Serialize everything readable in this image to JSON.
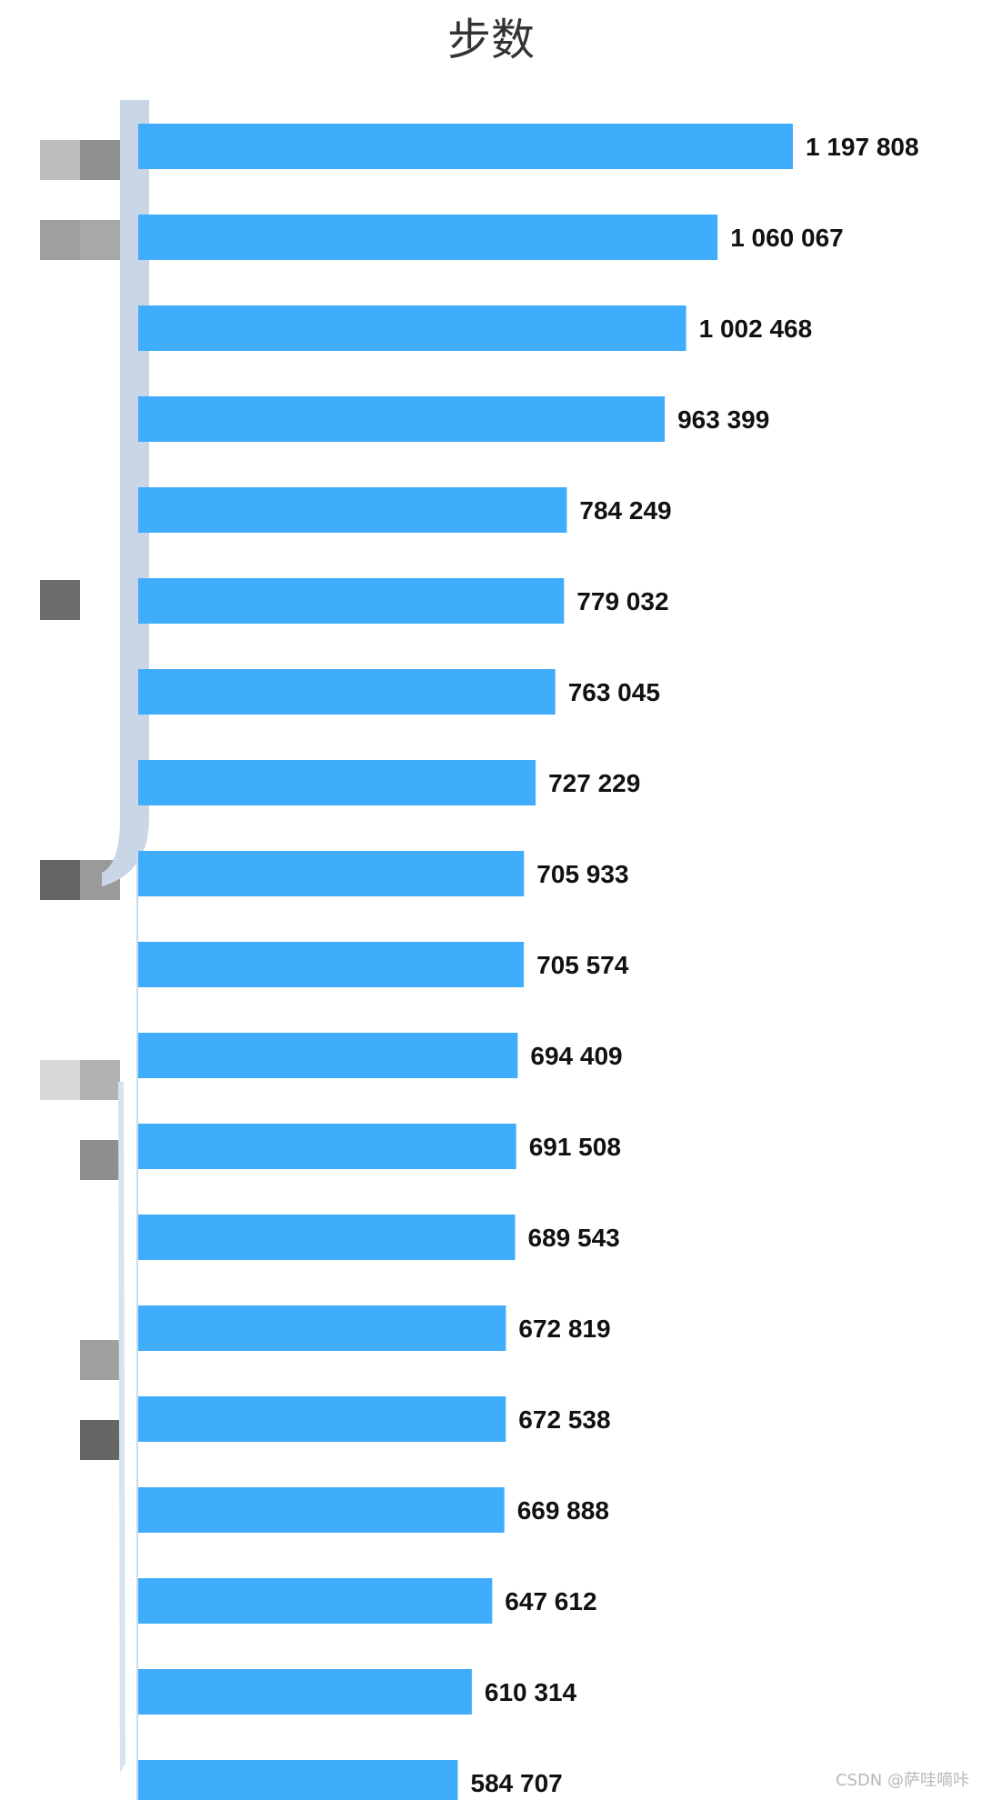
{
  "chart_data": {
    "type": "bar",
    "orientation": "horizontal",
    "title": "步数",
    "xlabel": "",
    "ylabel": "",
    "xlim": [
      0,
      1197808
    ],
    "grid": false,
    "legend": "none",
    "values": [
      1197808,
      1060067,
      1002468,
      963399,
      784249,
      779032,
      763045,
      727229,
      705933,
      705574,
      694409,
      691508,
      689543,
      672819,
      672538,
      669888,
      647612,
      610314,
      584707
    ],
    "value_labels": [
      "1 197 808",
      "1 060 067",
      "1 002 468",
      "963 399",
      "784 249",
      "779 032",
      "763 045",
      "727 229",
      "705 933",
      "705 574",
      "694 409",
      "691 508",
      "689 543",
      "672 819",
      "672 538",
      "669 888",
      "647 612",
      "610 314",
      "584 707"
    ],
    "colors": {
      "bar": "#3fadfc",
      "axis": "#c8dcf0",
      "blur_overlay": "#c9d6e6",
      "blur_highlight": "#bcdcfb"
    }
  },
  "watermark": "CSDN @萨哇嘀咔"
}
